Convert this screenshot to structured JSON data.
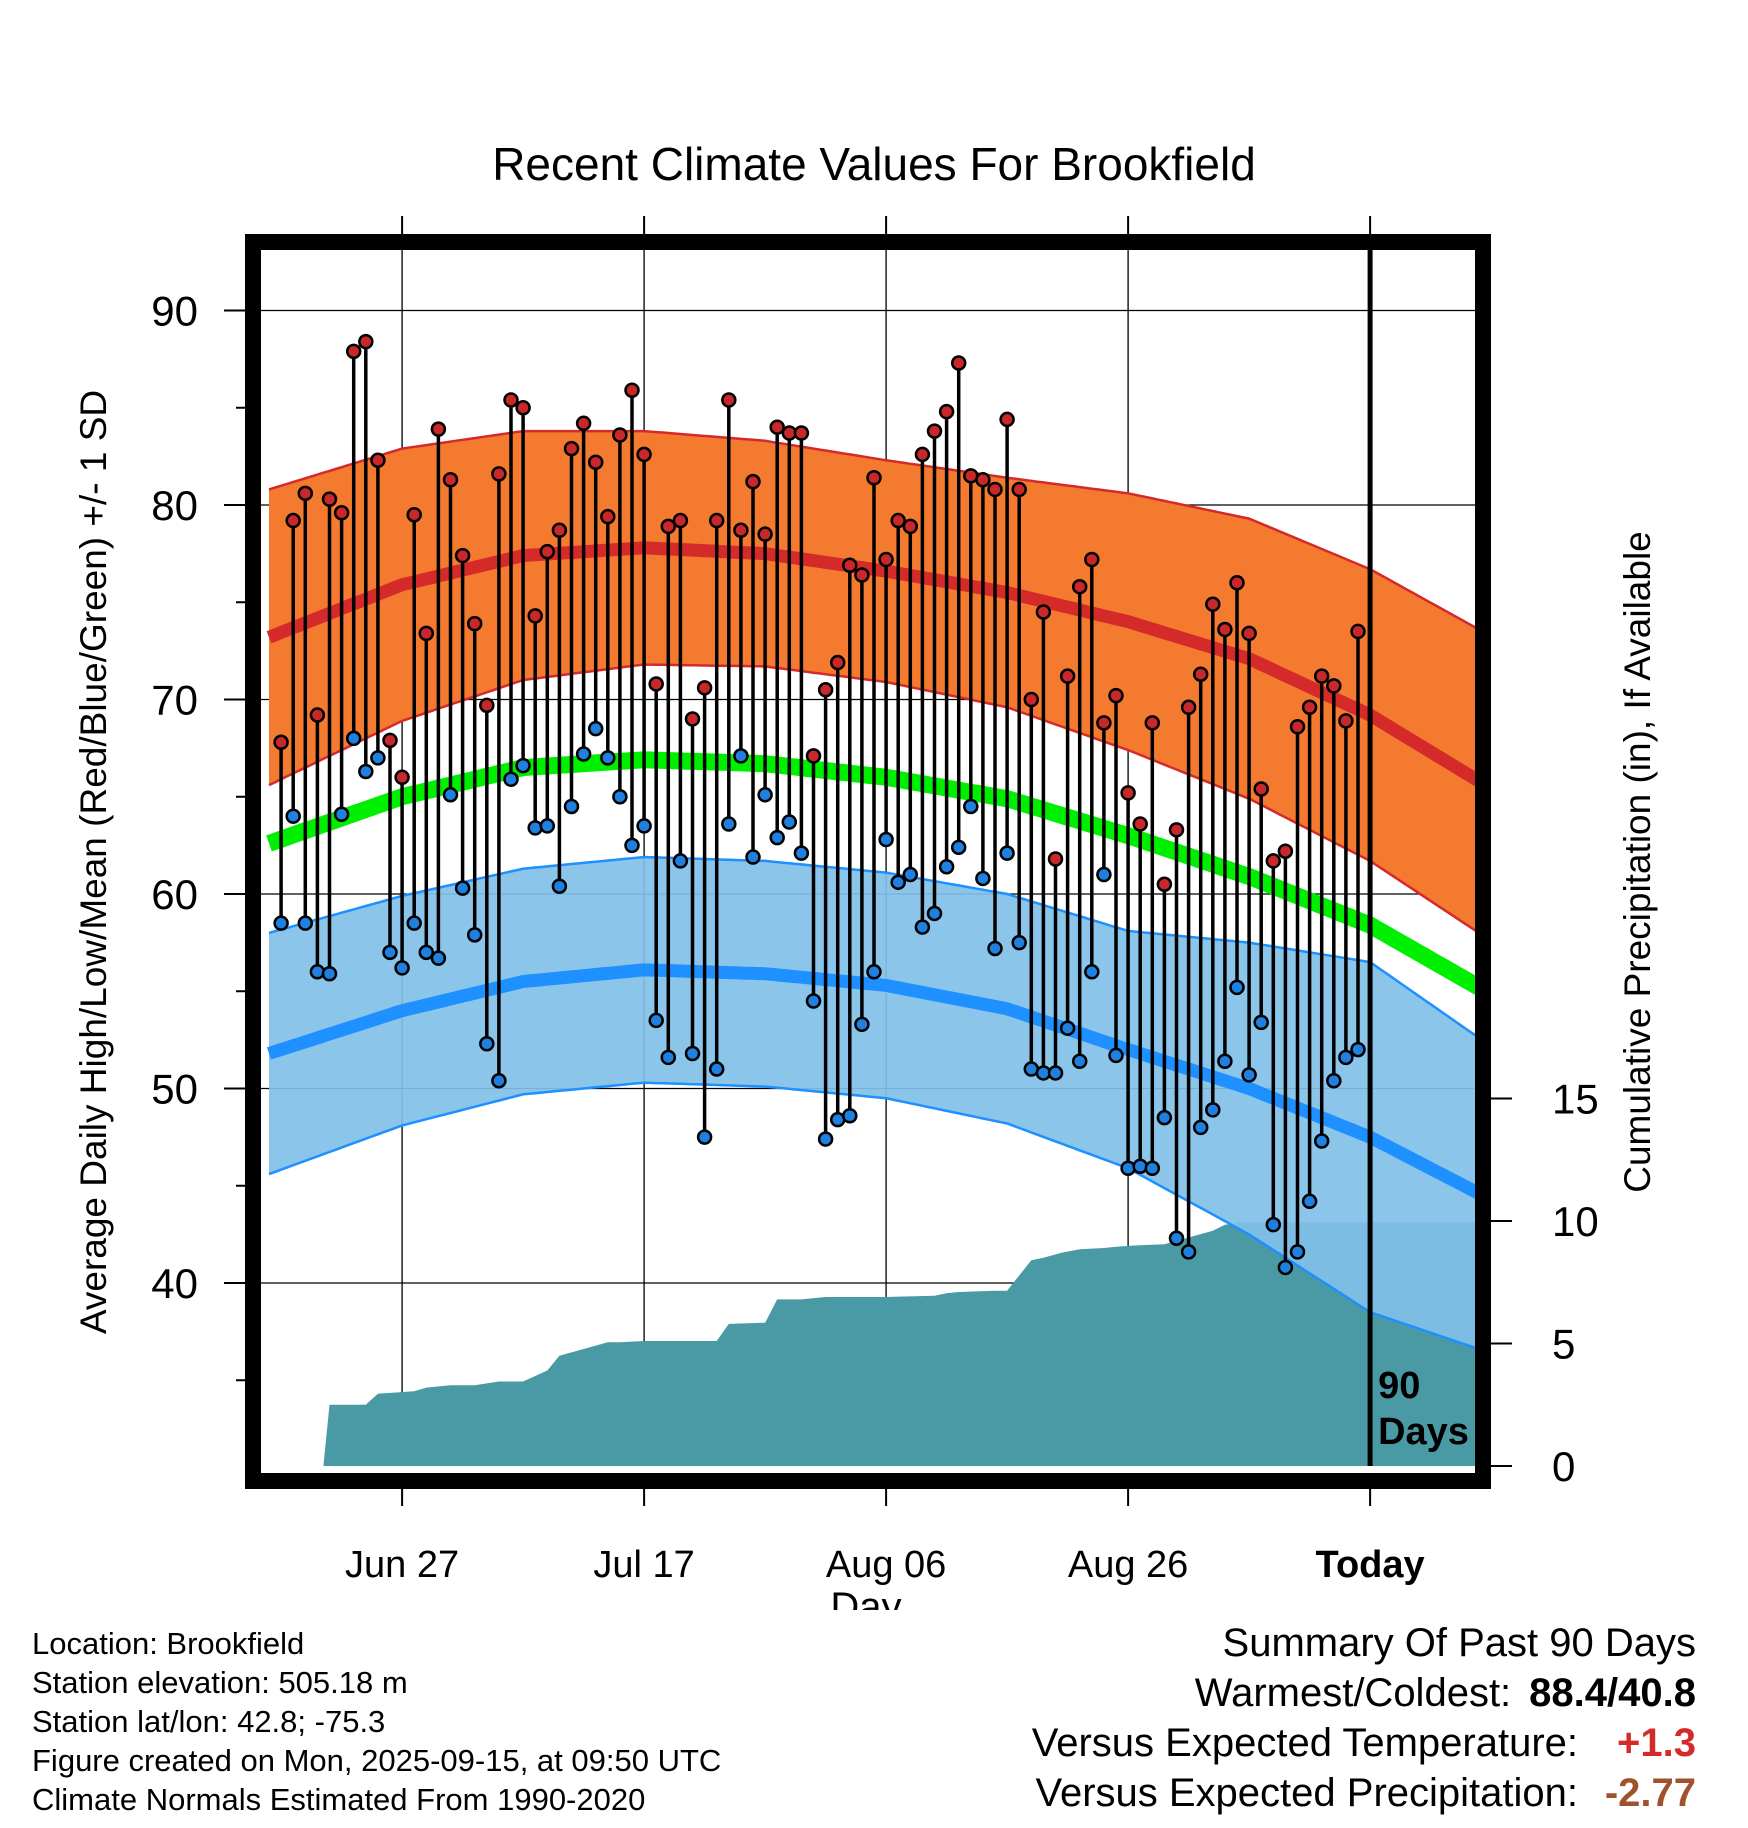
{
  "chart_data": {
    "type": "line",
    "title": "Recent Climate Values For Brookfield",
    "xlabel": "Day",
    "ylabel": "Average Daily High/Low/Mean (Red/Blue/Green) +/- 1 SD",
    "y2label": "Cumulative Precipitation (in), If Available",
    "x_range_days": [
      -91,
      9
    ],
    "ylim": [
      30,
      94
    ],
    "y2lim": [
      0,
      22.5
    ],
    "x_ticks": [
      {
        "day": -80,
        "label": "Jun 27"
      },
      {
        "day": -60,
        "label": "Jul 17"
      },
      {
        "day": -40,
        "label": "Aug 06"
      },
      {
        "day": -20,
        "label": "Aug 26"
      },
      {
        "day": 0,
        "label": "Today"
      }
    ],
    "y_ticks": [
      40,
      50,
      60,
      70,
      80,
      90
    ],
    "y2_ticks": [
      0,
      5,
      10,
      15
    ],
    "today_marker_label": "90\nDays",
    "colors": {
      "high_band": "#f47a30",
      "high_line": "#d42a2a",
      "low_band": "#82c0e8",
      "low_line": "#1e90ff",
      "mean_line": "#00ee00",
      "precip": "#4a9aa5",
      "high_dot": "#c8282a",
      "low_dot": "#2080e0"
    },
    "normals": {
      "days": [
        -91,
        -80,
        -70,
        -60,
        -50,
        -40,
        -30,
        -20,
        -10,
        0,
        9
      ],
      "high_mean": [
        73.2,
        75.9,
        77.4,
        77.8,
        77.5,
        76.6,
        75.5,
        74.0,
        72.1,
        69.2,
        65.8
      ],
      "high_sd": [
        7.6,
        7.0,
        6.4,
        6.0,
        5.8,
        5.7,
        5.9,
        6.6,
        7.2,
        7.5,
        7.8
      ],
      "low_mean": [
        51.8,
        54.0,
        55.5,
        56.1,
        55.9,
        55.3,
        54.1,
        52.0,
        50.0,
        47.5,
        44.6
      ],
      "low_sd": [
        6.2,
        5.9,
        5.8,
        5.8,
        5.8,
        5.8,
        5.9,
        6.1,
        7.5,
        9.0,
        8.0
      ],
      "mean": [
        62.6,
        65.0,
        66.5,
        66.9,
        66.7,
        66.0,
        64.9,
        63.0,
        60.9,
        58.4,
        55.2
      ]
    },
    "daily_highs": [
      67.8,
      79.2,
      80.6,
      69.2,
      80.3,
      79.6,
      87.9,
      88.4,
      82.3,
      67.9,
      66.0,
      79.5,
      73.4,
      83.9,
      81.3,
      77.4,
      73.9,
      69.7,
      81.6,
      85.4,
      85.0,
      74.3,
      77.6,
      78.7,
      82.9,
      84.2,
      82.2,
      79.4,
      83.6,
      85.9,
      82.6,
      70.8,
      78.9,
      79.2,
      69.0,
      70.6,
      79.2,
      85.4,
      78.7,
      81.2,
      78.5,
      84.0,
      83.7,
      83.7,
      67.1,
      70.5,
      71.9,
      76.9,
      76.4,
      81.4,
      77.2,
      79.2,
      78.9,
      82.6,
      83.8,
      84.8,
      87.3,
      81.5,
      81.3,
      80.8,
      84.4,
      80.8,
      70.0,
      74.5,
      61.8,
      71.2,
      75.8,
      77.2,
      68.8,
      70.2,
      65.2,
      63.6,
      68.8,
      60.5,
      63.3,
      69.6,
      71.3,
      74.9,
      73.6,
      76.0,
      73.4,
      65.4,
      61.7,
      62.2,
      68.6,
      69.6,
      71.2,
      70.7,
      68.9,
      73.5
    ],
    "daily_lows": [
      58.5,
      64.0,
      58.5,
      56.0,
      55.9,
      64.1,
      68.0,
      66.3,
      67.0,
      57.0,
      56.2,
      58.5,
      57.0,
      56.7,
      65.1,
      60.3,
      57.9,
      52.3,
      50.4,
      65.9,
      66.6,
      63.4,
      63.5,
      60.4,
      64.5,
      67.2,
      68.5,
      67.0,
      65.0,
      62.5,
      63.5,
      53.5,
      51.6,
      61.7,
      51.8,
      47.5,
      51.0,
      63.6,
      67.1,
      61.9,
      65.1,
      62.9,
      63.7,
      62.1,
      54.5,
      47.4,
      48.4,
      48.6,
      53.3,
      56.0,
      62.8,
      60.6,
      61.0,
      58.3,
      59.0,
      61.4,
      62.4,
      64.5,
      60.8,
      57.2,
      62.1,
      57.5,
      51.0,
      50.8,
      50.8,
      53.1,
      51.4,
      56.0,
      61.0,
      51.7,
      45.9,
      46.0,
      45.9,
      48.5,
      42.3,
      41.6,
      48.0,
      48.9,
      51.4,
      55.2,
      50.7,
      53.4,
      43.0,
      40.8,
      41.6,
      44.2,
      47.3,
      50.4,
      51.6,
      52.0
    ],
    "precip_cumulative": {
      "days": [
        -86.5,
        -86,
        -83,
        -82,
        -79,
        -78,
        -76,
        -74,
        -72,
        -70,
        -68,
        -67,
        -63,
        -62,
        -60,
        -59,
        -54,
        -53,
        -50,
        -49,
        -47,
        -45,
        -43,
        -40,
        -36,
        -35,
        -34,
        -31,
        -30,
        -28,
        -27,
        -25.5,
        -24,
        -22,
        -21,
        -19.5,
        -17,
        -13,
        -12,
        -11,
        -11,
        -10,
        -9
      ],
      "values": [
        0,
        2.5,
        2.5,
        2.95,
        3.05,
        3.2,
        3.3,
        3.3,
        3.45,
        3.45,
        3.9,
        4.5,
        5.05,
        5.05,
        5.1,
        5.1,
        5.1,
        5.8,
        5.85,
        6.8,
        6.8,
        6.9,
        6.9,
        6.9,
        6.95,
        7.05,
        7.1,
        7.15,
        7.15,
        8.4,
        8.5,
        8.7,
        8.85,
        8.9,
        8.95,
        9.0,
        9.05,
        9.6,
        9.85,
        9.9,
        9.95,
        9.95,
        9.95
      ]
    }
  },
  "info": {
    "location": "Location: Brookfield",
    "elevation": "Station elevation: 505.18 m",
    "latlon": "Station lat/lon: 42.8; -75.3",
    "created": "Figure created on Mon, 2025-09-15, at 09:50 UTC",
    "normals": "Climate Normals Estimated From 1990-2020"
  },
  "summary": {
    "title": "Summary Of Past 90 Days",
    "warm_cold_label": "Warmest/Coldest:",
    "warm_cold_value": "88.4/40.8",
    "temp_label": "Versus Expected Temperature:",
    "temp_value": "+1.3",
    "temp_color": "#d42a2a",
    "precip_label": "Versus Expected Precipitation:",
    "precip_value": "-2.77",
    "precip_color": "#a0522d"
  }
}
